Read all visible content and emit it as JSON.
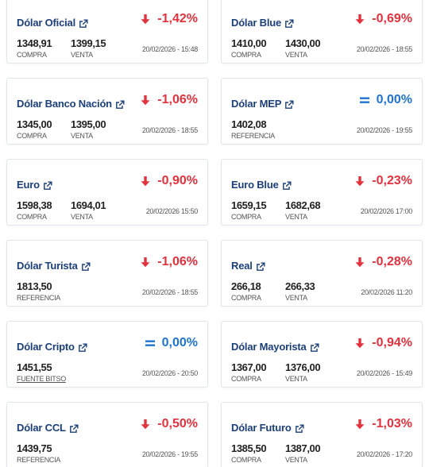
{
  "colors": {
    "title": "#1c3f7a",
    "down": "#e2323e",
    "flat": "#1e74d0"
  },
  "cards": [
    {
      "title": "Dólar Oficial",
      "change": "-1,42%",
      "direction": "down",
      "icon": "arrow-down-icon",
      "values": [
        {
          "value": "1348,91",
          "label": "COMPRA"
        },
        {
          "value": "1399,15",
          "label": "VENTA"
        }
      ],
      "date": "20/02/2026 - 15:48"
    },
    {
      "title": "Dólar Blue",
      "change": "-0,69%",
      "direction": "down",
      "icon": "arrow-down-icon",
      "values": [
        {
          "value": "1410,00",
          "label": "COMPRA"
        },
        {
          "value": "1430,00",
          "label": "VENTA"
        }
      ],
      "date": "20/02/2026 - 18:55"
    },
    {
      "title": "Dólar Banco Nación",
      "change": "-1,06%",
      "direction": "down",
      "icon": "arrow-down-icon",
      "values": [
        {
          "value": "1345,00",
          "label": "COMPRA"
        },
        {
          "value": "1395,00",
          "label": "VENTA"
        }
      ],
      "date": "20/02/2026 - 18:55"
    },
    {
      "title": "Dólar MEP",
      "change": "0,00%",
      "direction": "flat",
      "icon": "equals-icon",
      "values": [
        {
          "value": "1402,08",
          "label": "REFERENCIA"
        }
      ],
      "date": "20/02/2026 - 19:55"
    },
    {
      "title": "Euro",
      "change": "-0,90%",
      "direction": "down",
      "icon": "arrow-down-icon",
      "values": [
        {
          "value": "1598,38",
          "label": "COMPRA"
        },
        {
          "value": "1694,01",
          "label": "VENTA"
        }
      ],
      "date": "20/02/2026 15:50"
    },
    {
      "title": "Euro Blue",
      "change": "-0,23%",
      "direction": "down",
      "icon": "arrow-down-icon",
      "values": [
        {
          "value": "1659,15",
          "label": "COMPRA"
        },
        {
          "value": "1682,68",
          "label": "VENTA"
        }
      ],
      "date": "20/02/2026 17:00"
    },
    {
      "title": "Dólar Turista",
      "change": "-1,06%",
      "direction": "down",
      "icon": "arrow-down-icon",
      "values": [
        {
          "value": "1813,50",
          "label": "REFERENCIA"
        }
      ],
      "date": "20/02/2026 - 18:55"
    },
    {
      "title": "Real",
      "change": "-0,28%",
      "direction": "down",
      "icon": "arrow-down-icon",
      "values": [
        {
          "value": "266,18",
          "label": "COMPRA"
        },
        {
          "value": "266,33",
          "label": "VENTA"
        }
      ],
      "date": "20/02/2026 11:20"
    },
    {
      "title": "Dólar Cripto",
      "change": "0,00%",
      "direction": "flat",
      "icon": "equals-icon",
      "values": [
        {
          "value": "1451,55",
          "label": "FUENTE BITSO",
          "link": true
        }
      ],
      "date": "20/02/2026 - 20:50"
    },
    {
      "title": "Dólar Mayorista",
      "change": "-0,94%",
      "direction": "down",
      "icon": "arrow-down-icon",
      "values": [
        {
          "value": "1367,00",
          "label": "COMPRA"
        },
        {
          "value": "1376,00",
          "label": "VENTA"
        }
      ],
      "date": "20/02/2026 - 15:49"
    },
    {
      "title": "Dólar CCL",
      "change": "-0,50%",
      "direction": "down",
      "icon": "arrow-down-icon",
      "values": [
        {
          "value": "1439,75",
          "label": "REFERENCIA"
        }
      ],
      "date": "20/02/2026 - 19:55"
    },
    {
      "title": "Dólar Futuro",
      "change": "-1,03%",
      "direction": "down",
      "icon": "arrow-down-icon",
      "values": [
        {
          "value": "1385,50",
          "label": "COMPRA"
        },
        {
          "value": "1387,00",
          "label": "VENTA"
        }
      ],
      "date": "20/02/2026 - 17:20"
    }
  ]
}
